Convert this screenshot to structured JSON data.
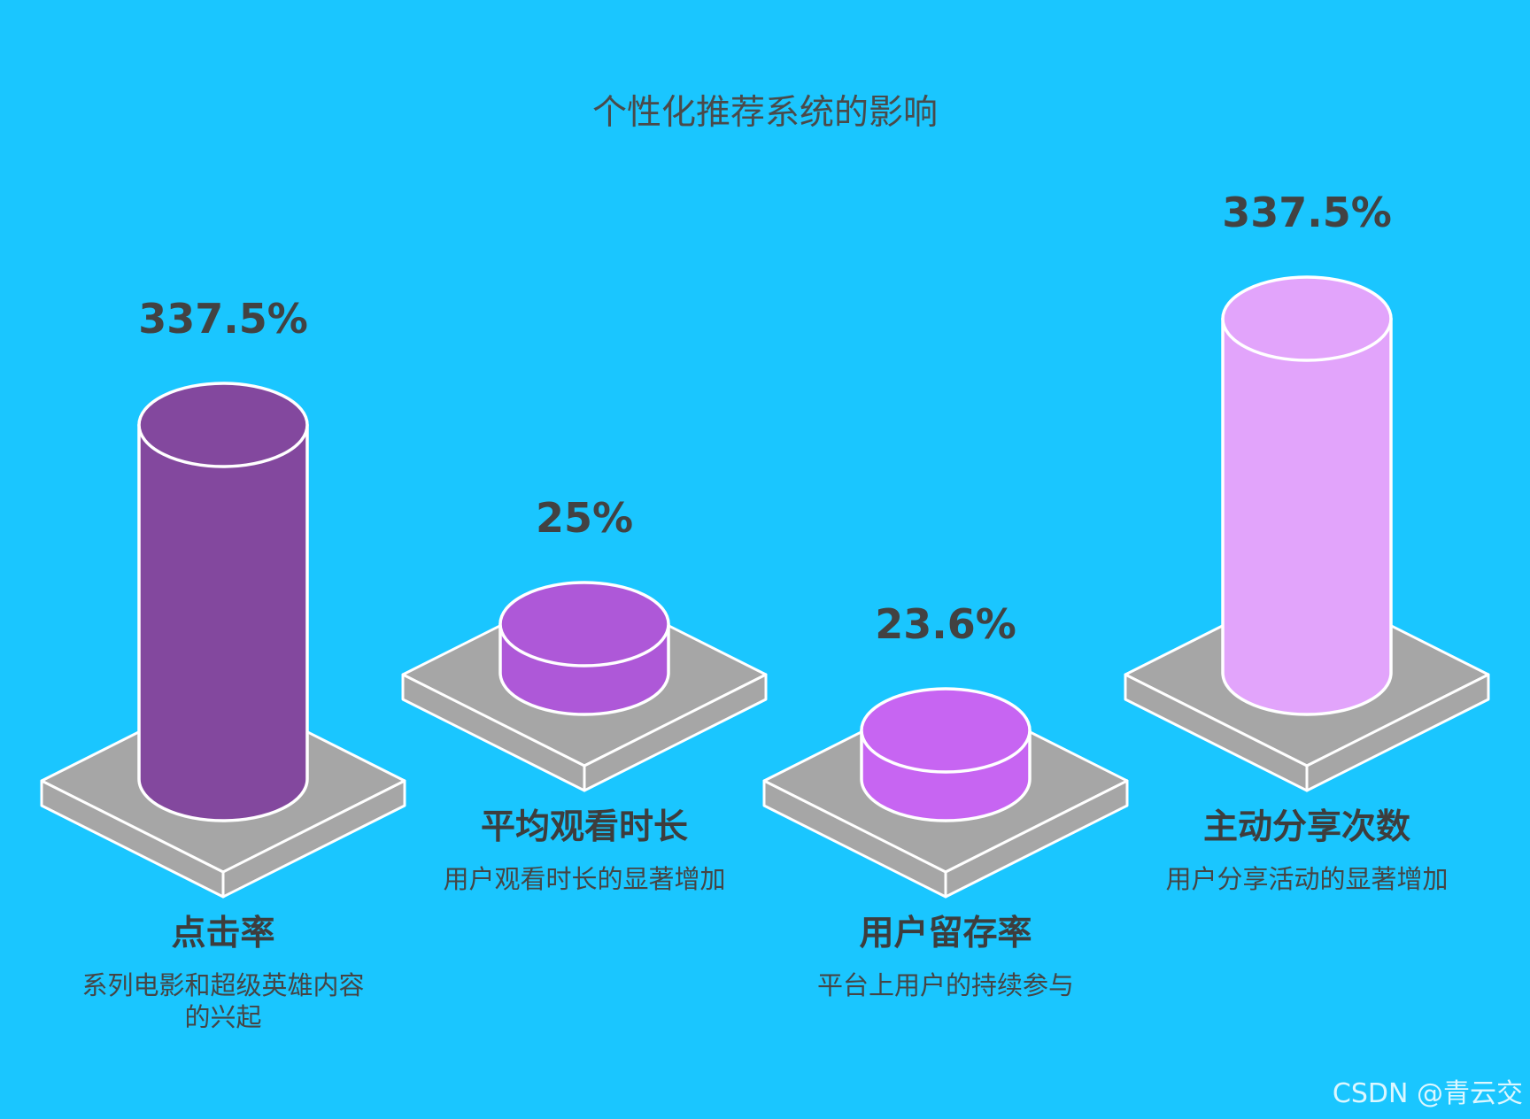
{
  "chart_data": {
    "type": "bar",
    "title": "个性化推荐系统的影响",
    "categories": [
      "点击率",
      "平均观看时长",
      "用户留存率",
      "主动分享次数"
    ],
    "descriptions": [
      "系列电影和超级英雄内容的兴起",
      "用户观看时长的显著增加",
      "平台上用户的持续参与",
      "用户分享活动的显著增加"
    ],
    "value_labels": [
      "337.5%",
      "25%",
      "23.6%",
      "337.5%"
    ],
    "values": [
      337.5,
      25,
      23.6,
      337.5
    ],
    "colors": [
      "#83489e",
      "#ae58d8",
      "#c765f2",
      "#e2a4fb"
    ],
    "grid": false
  },
  "watermark": "CSDN @青云交"
}
